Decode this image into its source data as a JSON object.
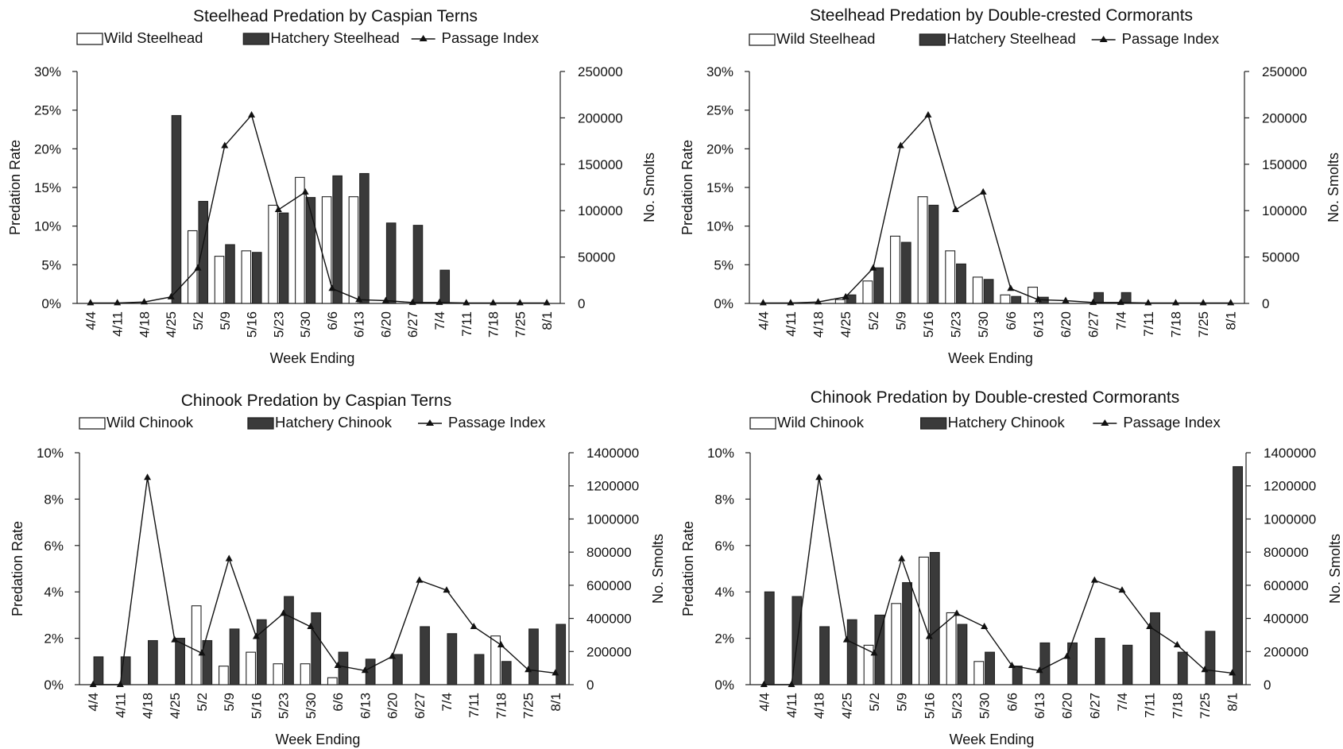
{
  "chart_data": [
    {
      "type": "bar",
      "title": "Steelhead Predation by Caspian Terns",
      "xlabel": "Week Ending",
      "ylabel": "Predation Rate",
      "y2label": "No. Smolts",
      "categories": [
        "4/4",
        "4/11",
        "4/18",
        "4/25",
        "5/2",
        "5/9",
        "5/16",
        "5/23",
        "5/30",
        "6/6",
        "6/13",
        "6/20",
        "6/27",
        "7/4",
        "7/11",
        "7/18",
        "7/25",
        "8/1"
      ],
      "ylim": [
        0,
        0.3
      ],
      "yticks": [
        "0%",
        "5%",
        "10%",
        "15%",
        "20%",
        "25%",
        "30%"
      ],
      "y2lim": [
        0,
        250000
      ],
      "y2ticks": [
        "0",
        "50000",
        "100000",
        "150000",
        "200000",
        "250000"
      ],
      "grid": false,
      "legend": "top",
      "series": [
        {
          "name": "Wild Steelhead",
          "kind": "bar",
          "fill": "#ffffff",
          "values": [
            0,
            0,
            0,
            0,
            0.094,
            0.061,
            0.068,
            0.127,
            0.163,
            0.138,
            0.138,
            0,
            0,
            0,
            0,
            0,
            0,
            0
          ]
        },
        {
          "name": "Hatchery Steelhead",
          "kind": "bar",
          "fill": "#3a3a3a",
          "values": [
            0,
            0,
            0,
            0.243,
            0.132,
            0.076,
            0.066,
            0.117,
            0.137,
            0.165,
            0.168,
            0.104,
            0.101,
            0.043,
            0,
            0,
            0,
            0
          ]
        },
        {
          "name": "Passage Index",
          "kind": "line",
          "axis": "y2",
          "values": [
            500,
            500,
            1500,
            7000,
            38000,
            170000,
            203000,
            101000,
            120000,
            16000,
            4000,
            3000,
            1000,
            1000,
            500,
            500,
            500,
            500
          ]
        }
      ]
    },
    {
      "type": "bar",
      "title": "Steelhead Predation by Double-crested Cormorants",
      "xlabel": "Week Ending",
      "ylabel": "Predation Rate",
      "y2label": "No. Smolts",
      "categories": [
        "4/4",
        "4/11",
        "4/18",
        "4/25",
        "5/2",
        "5/9",
        "5/16",
        "5/23",
        "5/30",
        "6/6",
        "6/13",
        "6/20",
        "6/27",
        "7/4",
        "7/11",
        "7/18",
        "7/25",
        "8/1"
      ],
      "ylim": [
        0,
        0.3
      ],
      "yticks": [
        "0%",
        "5%",
        "10%",
        "15%",
        "20%",
        "25%",
        "30%"
      ],
      "y2lim": [
        0,
        250000
      ],
      "y2ticks": [
        "0",
        "50000",
        "100000",
        "150000",
        "200000",
        "250000"
      ],
      "grid": false,
      "legend": "top",
      "series": [
        {
          "name": "Wild Steelhead",
          "kind": "bar",
          "fill": "#ffffff",
          "values": [
            0,
            0,
            0,
            0.005,
            0.029,
            0.087,
            0.138,
            0.068,
            0.034,
            0.011,
            0.021,
            0,
            0,
            0,
            0,
            0,
            0,
            0
          ]
        },
        {
          "name": "Hatchery Steelhead",
          "kind": "bar",
          "fill": "#3a3a3a",
          "values": [
            0,
            0,
            0,
            0.011,
            0.046,
            0.079,
            0.127,
            0.051,
            0.031,
            0.009,
            0.008,
            0,
            0.014,
            0.014,
            0,
            0,
            0,
            0
          ]
        },
        {
          "name": "Passage Index",
          "kind": "line",
          "axis": "y2",
          "values": [
            500,
            500,
            1500,
            7000,
            38000,
            170000,
            203000,
            101000,
            120000,
            16000,
            4000,
            3000,
            1000,
            1000,
            500,
            500,
            500,
            500
          ]
        }
      ]
    },
    {
      "type": "bar",
      "title": "Chinook Predation by Caspian Terns",
      "xlabel": "Week Ending",
      "ylabel": "Predation Rate",
      "y2label": "No. Smolts",
      "categories": [
        "4/4",
        "4/11",
        "4/18",
        "4/25",
        "5/2",
        "5/9",
        "5/16",
        "5/23",
        "5/30",
        "6/6",
        "6/13",
        "6/20",
        "6/27",
        "7/4",
        "7/11",
        "7/18",
        "7/25",
        "8/1"
      ],
      "ylim": [
        0,
        0.1
      ],
      "yticks": [
        "0%",
        "2%",
        "4%",
        "6%",
        "8%",
        "10%"
      ],
      "y2lim": [
        0,
        1400000
      ],
      "y2ticks": [
        "0",
        "200000",
        "400000",
        "600000",
        "800000",
        "1000000",
        "1200000",
        "1400000"
      ],
      "grid": false,
      "legend": "top",
      "series": [
        {
          "name": "Wild Chinook",
          "kind": "bar",
          "fill": "#ffffff",
          "values": [
            0,
            0,
            0,
            0,
            0.034,
            0.008,
            0.014,
            0.009,
            0.009,
            0.003,
            0,
            0,
            0,
            0,
            0,
            0.021,
            0,
            0
          ]
        },
        {
          "name": "Hatchery Chinook",
          "kind": "bar",
          "fill": "#3a3a3a",
          "values": [
            0.012,
            0.012,
            0.019,
            0.02,
            0.019,
            0.024,
            0.028,
            0.038,
            0.031,
            0.014,
            0.011,
            0.013,
            0.025,
            0.022,
            0.013,
            0.01,
            0.024,
            0.026
          ]
        },
        {
          "name": "Passage Index",
          "kind": "line",
          "axis": "y2",
          "values": [
            0,
            0,
            1250000,
            270000,
            190000,
            760000,
            290000,
            430000,
            350000,
            115000,
            85000,
            170000,
            630000,
            570000,
            350000,
            240000,
            90000,
            70000
          ]
        }
      ]
    },
    {
      "type": "bar",
      "title": "Chinook Predation by Double-crested Cormorants",
      "xlabel": "Week Ending",
      "ylabel": "Predation Rate",
      "y2label": "No. Smolts",
      "categories": [
        "4/4",
        "4/11",
        "4/18",
        "4/25",
        "5/2",
        "5/9",
        "5/16",
        "5/23",
        "5/30",
        "6/6",
        "6/13",
        "6/20",
        "6/27",
        "7/4",
        "7/11",
        "7/18",
        "7/25",
        "8/1"
      ],
      "ylim": [
        0,
        0.1
      ],
      "yticks": [
        "0%",
        "2%",
        "4%",
        "6%",
        "8%",
        "10%"
      ],
      "y2lim": [
        0,
        1400000
      ],
      "y2ticks": [
        "0",
        "200000",
        "400000",
        "600000",
        "800000",
        "1000000",
        "1200000",
        "1400000"
      ],
      "grid": false,
      "legend": "top",
      "series": [
        {
          "name": "Wild Chinook",
          "kind": "bar",
          "fill": "#ffffff",
          "values": [
            0,
            0,
            0,
            0,
            0.017,
            0.035,
            0.055,
            0.031,
            0.01,
            0,
            0,
            0,
            0,
            0,
            0,
            0,
            0,
            0
          ]
        },
        {
          "name": "Hatchery Chinook",
          "kind": "bar",
          "fill": "#3a3a3a",
          "values": [
            0.04,
            0.038,
            0.025,
            0.028,
            0.03,
            0.044,
            0.057,
            0.026,
            0.014,
            0.008,
            0.018,
            0.018,
            0.02,
            0.017,
            0.031,
            0.014,
            0.023,
            0.094
          ]
        },
        {
          "name": "Passage Index",
          "kind": "line",
          "axis": "y2",
          "values": [
            0,
            0,
            1250000,
            270000,
            190000,
            760000,
            290000,
            430000,
            350000,
            115000,
            85000,
            170000,
            630000,
            570000,
            350000,
            240000,
            90000,
            70000
          ]
        }
      ]
    }
  ]
}
